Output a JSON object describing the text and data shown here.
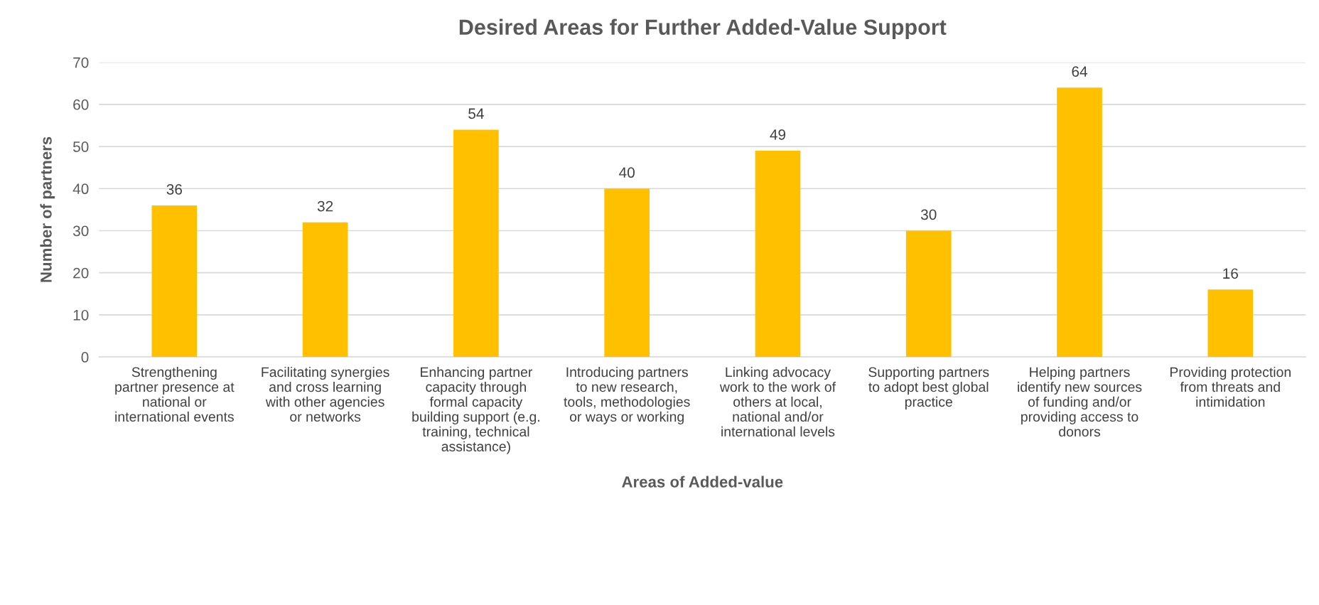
{
  "chart_data": {
    "type": "bar",
    "title": "Desired Areas for Further Added-Value Support",
    "xlabel": "Areas of Added-value",
    "ylabel": "Number of partners",
    "categories": [
      "Strengthening\npartner presence at\nnational or\ninternational events",
      "Facilitating synergies\nand cross learning\nwith other agencies\nor networks",
      "Enhancing partner\ncapacity through\nformal capacity\nbuilding support (e.g.\ntraining, technical\nassistance)",
      "Introducing partners\nto new research,\ntools, methodologies\nor ways or working",
      "Linking advocacy\nwork to the work of\nothers at local,\nnational and/or\ninternational levels",
      "Supporting partners\nto adopt best global\npractice",
      "Helping partners\nidentify new sources\nof funding and/or\nproviding access to\ndonors",
      "Providing protection\nfrom threats and\nintimidation"
    ],
    "values": [
      36,
      32,
      54,
      40,
      49,
      30,
      64,
      16
    ],
    "color": "#ffc000",
    "ylim": [
      0,
      70
    ],
    "yticks": [
      0,
      10,
      20,
      30,
      40,
      50,
      60,
      70
    ],
    "grid": "y",
    "data_labels": true
  }
}
